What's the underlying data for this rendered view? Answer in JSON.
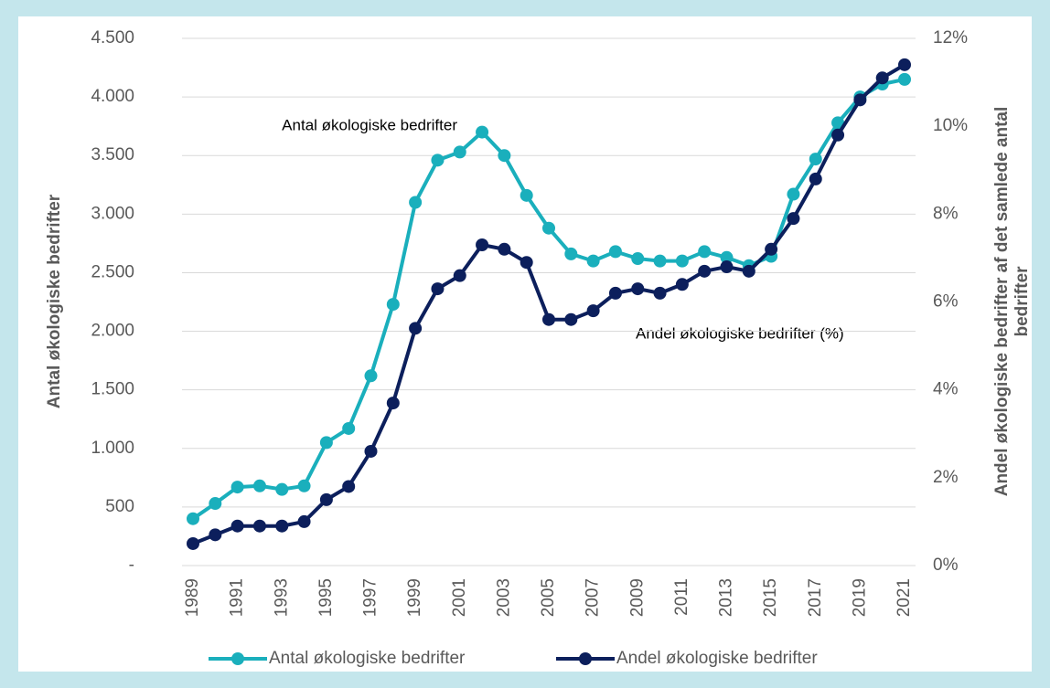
{
  "chart_data": {
    "type": "line",
    "categories": [
      "1989",
      null,
      "1991",
      null,
      "1993",
      null,
      "1995",
      null,
      "1997",
      null,
      "1999",
      null,
      "2001",
      null,
      "2003",
      null,
      "2005",
      null,
      "2007",
      null,
      "2009",
      null,
      "2011",
      null,
      "2013",
      null,
      "2015",
      null,
      "2017",
      null,
      "2019",
      null,
      "2021"
    ],
    "ylabel": "Antal økologiske bedrifter",
    "y2label": "Andel økologiske bedrifter af det samlede antal bedrifter",
    "ylim": [
      0,
      4500
    ],
    "yticks": [
      {
        "value": 0,
        "label": "-"
      },
      500,
      {
        "value": 1000,
        "label": "1.000"
      },
      {
        "value": 1500,
        "label": "1.500"
      },
      {
        "value": 2000,
        "label": "2.000"
      },
      {
        "value": 2500,
        "label": "2.500"
      },
      {
        "value": 3000,
        "label": "3.000"
      },
      {
        "value": 3500,
        "label": "3.500"
      },
      {
        "value": 4000,
        "label": "4.000"
      },
      {
        "value": 4500,
        "label": "4.500"
      }
    ],
    "y2lim": [
      0,
      12
    ],
    "y2ticks": [
      {
        "value": 0,
        "label": "0%"
      },
      {
        "value": 2,
        "label": "2%"
      },
      {
        "value": 4,
        "label": "4%"
      },
      {
        "value": 6,
        "label": "6%"
      },
      {
        "value": 8,
        "label": "8%"
      },
      {
        "value": 10,
        "label": "10%"
      },
      {
        "value": 12,
        "label": "12%"
      }
    ],
    "grid": true,
    "legend": "bottom",
    "annotations": [
      "Antal økologiske bedrifter",
      "Andel økologiske bedrifter (%)"
    ],
    "series": [
      {
        "name": "Antal økologiske bedrifter",
        "color": "#1aafbc",
        "axis": "y",
        "values": [
          400,
          530,
          670,
          680,
          650,
          680,
          1050,
          1170,
          1620,
          2230,
          3100,
          3460,
          3530,
          3700,
          3500,
          3160,
          2880,
          2660,
          2600,
          2680,
          2620,
          2600,
          2600,
          2680,
          2630,
          2560,
          2640,
          3170,
          3470,
          3780,
          4000,
          4110,
          4150
        ]
      },
      {
        "name": "Andel økologiske bedrifter",
        "color": "#0c1f5c",
        "axis": "y2",
        "values": [
          0.5,
          0.7,
          0.9,
          0.9,
          0.9,
          1.0,
          1.5,
          1.8,
          2.6,
          3.7,
          5.4,
          6.3,
          6.6,
          7.3,
          7.2,
          6.9,
          5.6,
          5.6,
          5.8,
          6.2,
          6.3,
          6.2,
          6.4,
          6.7,
          6.8,
          6.7,
          7.2,
          7.9,
          8.8,
          9.8,
          10.6,
          11.1,
          11.4
        ]
      }
    ]
  }
}
